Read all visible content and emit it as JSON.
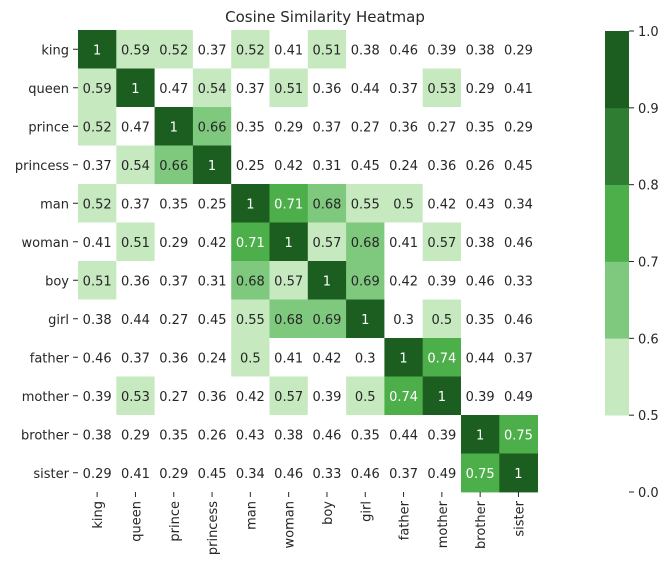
{
  "chart_data": {
    "type": "heatmap",
    "title": "Cosine Similarity Heatmap",
    "rows": [
      "king",
      "queen",
      "prince",
      "princess",
      "man",
      "woman",
      "boy",
      "girl",
      "father",
      "mother",
      "brother",
      "sister"
    ],
    "columns": [
      "king",
      "queen",
      "prince",
      "princess",
      "man",
      "woman",
      "boy",
      "girl",
      "father",
      "mother",
      "brother",
      "sister"
    ],
    "values": [
      [
        1,
        0.59,
        0.52,
        0.37,
        0.52,
        0.41,
        0.51,
        0.38,
        0.46,
        0.39,
        0.38,
        0.29
      ],
      [
        0.59,
        1,
        0.47,
        0.54,
        0.37,
        0.51,
        0.36,
        0.44,
        0.37,
        0.53,
        0.29,
        0.41
      ],
      [
        0.52,
        0.47,
        1,
        0.66,
        0.35,
        0.29,
        0.37,
        0.27,
        0.36,
        0.27,
        0.35,
        0.29
      ],
      [
        0.37,
        0.54,
        0.66,
        1,
        0.25,
        0.42,
        0.31,
        0.45,
        0.24,
        0.36,
        0.26,
        0.45
      ],
      [
        0.52,
        0.37,
        0.35,
        0.25,
        1,
        0.71,
        0.68,
        0.55,
        0.5,
        0.42,
        0.43,
        0.34
      ],
      [
        0.41,
        0.51,
        0.29,
        0.42,
        0.71,
        1,
        0.57,
        0.68,
        0.41,
        0.57,
        0.38,
        0.46
      ],
      [
        0.51,
        0.36,
        0.37,
        0.31,
        0.68,
        0.57,
        1,
        0.69,
        0.42,
        0.39,
        0.46,
        0.33
      ],
      [
        0.38,
        0.44,
        0.27,
        0.45,
        0.55,
        0.68,
        0.69,
        1,
        0.3,
        0.5,
        0.35,
        0.46
      ],
      [
        0.46,
        0.37,
        0.36,
        0.24,
        0.5,
        0.41,
        0.42,
        0.3,
        1,
        0.74,
        0.44,
        0.37
      ],
      [
        0.39,
        0.53,
        0.27,
        0.36,
        0.42,
        0.57,
        0.39,
        0.5,
        0.74,
        1,
        0.39,
        0.49
      ],
      [
        0.38,
        0.29,
        0.35,
        0.26,
        0.43,
        0.38,
        0.46,
        0.35,
        0.44,
        0.39,
        1,
        0.75
      ],
      [
        0.29,
        0.41,
        0.29,
        0.45,
        0.34,
        0.46,
        0.33,
        0.46,
        0.37,
        0.49,
        0.75,
        1
      ]
    ],
    "colorbar": {
      "bins": [
        {
          "from": 0.0,
          "to": 0.5,
          "color": "#ffffff"
        },
        {
          "from": 0.5,
          "to": 0.6,
          "color": "#c7e9c0"
        },
        {
          "from": 0.6,
          "to": 0.7,
          "color": "#7fc97f"
        },
        {
          "from": 0.7,
          "to": 0.8,
          "color": "#4daf4a"
        },
        {
          "from": 0.8,
          "to": 0.9,
          "color": "#2e7d32"
        },
        {
          "from": 0.9,
          "to": 1.0,
          "color": "#1b5e20"
        }
      ],
      "ticks": [
        "0.0",
        "0.5",
        "0.6",
        "0.7",
        "0.8",
        "0.9",
        "1.0"
      ]
    },
    "text_color_dark": "#262626",
    "text_color_light": "#ffffff"
  }
}
